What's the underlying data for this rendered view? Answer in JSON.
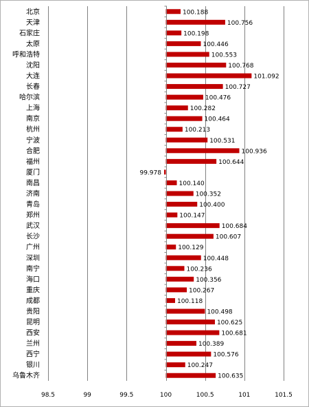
{
  "chart_data": {
    "type": "bar",
    "orientation": "horizontal",
    "categories": [
      "北京",
      "天津",
      "石家庄",
      "太原",
      "呼和浩特",
      "沈阳",
      "大连",
      "长春",
      "哈尔滨",
      "上海",
      "南京",
      "杭州",
      "宁波",
      "合肥",
      "福州",
      "厦门",
      "南昌",
      "济南",
      "青岛",
      "郑州",
      "武汉",
      "长沙",
      "广州",
      "深圳",
      "南宁",
      "海口",
      "重庆",
      "成都",
      "贵阳",
      "昆明",
      "西安",
      "兰州",
      "西宁",
      "银川",
      "乌鲁木齐"
    ],
    "values": [
      100.188,
      100.756,
      100.198,
      100.446,
      100.553,
      100.768,
      101.092,
      100.727,
      100.476,
      100.282,
      100.464,
      100.213,
      100.531,
      100.936,
      100.644,
      99.978,
      100.14,
      100.352,
      100.4,
      100.147,
      100.684,
      100.607,
      100.129,
      100.448,
      100.236,
      100.356,
      100.267,
      100.118,
      100.498,
      100.625,
      100.681,
      100.389,
      100.576,
      100.247,
      100.635
    ],
    "value_labels": [
      "100.188",
      "100.756",
      "100.198",
      "100.446",
      "100.553",
      "100.768",
      "101.092",
      "100.727",
      "100.476",
      "100.282",
      "100.464",
      "100.213",
      "100.531",
      "100.936",
      "100.644",
      "99.978",
      "100.140",
      "100.352",
      "100.400",
      "100.147",
      "100.684",
      "100.607",
      "100.129",
      "100.448",
      "100.236",
      "100.356",
      "100.267",
      "100.118",
      "100.498",
      "100.625",
      "100.681",
      "100.389",
      "100.576",
      "100.247",
      "100.635"
    ],
    "xlim": [
      98.5,
      101.5
    ],
    "baseline": 100,
    "x_ticks": [
      98.5,
      99,
      99.5,
      100,
      100.5,
      101,
      101.5
    ],
    "x_tick_labels": [
      "98.5",
      "99",
      "99.5",
      "100",
      "100.5",
      "101",
      "101.5"
    ],
    "grid": "vertical",
    "legend": "none",
    "bar_color": "#c00000",
    "title": "",
    "xlabel": "",
    "ylabel": ""
  }
}
